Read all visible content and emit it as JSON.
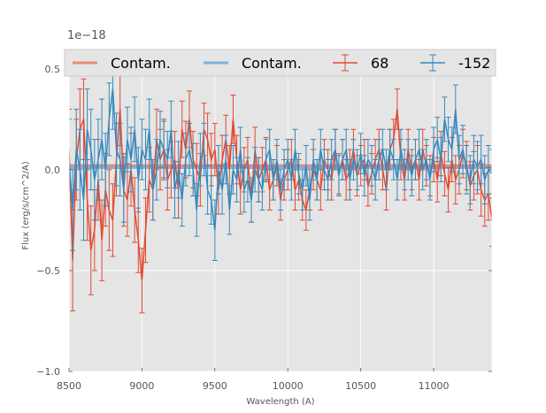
{
  "chart_data": {
    "type": "line",
    "title": "",
    "xlabel": "Wavelength (A)",
    "ylabel": "Flux (erg/s/cm^2/A)",
    "y_offset_label": "1e−18",
    "xlim": [
      8500,
      11400
    ],
    "ylim": [
      -1.0,
      0.6
    ],
    "xticks": [
      8500,
      9000,
      9500,
      10000,
      10500,
      11000
    ],
    "xtick_labels": [
      "8500",
      "9000",
      "9500",
      "10000",
      "10500",
      "11000"
    ],
    "yticks": [
      -1.0,
      -0.5,
      0.0,
      0.5
    ],
    "ytick_labels": [
      "−1.0",
      "−0.5",
      "0.0",
      "0.5"
    ],
    "grid": true,
    "legend_position": "top",
    "colors": {
      "red": "#E24A33",
      "blue": "#348ABD",
      "red_light": "#E88A78",
      "blue_light": "#7FB1D6",
      "background": "#E5E5E5",
      "grid": "#FFFFFF"
    },
    "legend": [
      {
        "label": "Contam.",
        "kind": "line",
        "color": "#E88A78"
      },
      {
        "label": "Contam.",
        "kind": "line",
        "color": "#7FB1D6"
      },
      {
        "label": "68",
        "kind": "errorbar",
        "color": "#E24A33"
      },
      {
        "label": "-152",
        "kind": "errorbar",
        "color": "#348ABD"
      }
    ],
    "series": [
      {
        "name": "Contam.",
        "kind": "line",
        "color": "#E88A78",
        "x": [
          8500,
          11400
        ],
        "values": [
          0.02,
          0.02
        ]
      },
      {
        "name": "Contam.",
        "kind": "line",
        "color": "#7FB1D6",
        "x": [
          8500,
          11400
        ],
        "values": [
          0.01,
          0.01
        ]
      },
      {
        "name": "68",
        "kind": "errorbar",
        "color": "#E24A33",
        "x": [
          8500,
          8525,
          8550,
          8575,
          8600,
          8625,
          8650,
          8675,
          8700,
          8725,
          8750,
          8775,
          8800,
          8825,
          8850,
          8875,
          8900,
          8925,
          8950,
          8975,
          9000,
          9025,
          9050,
          9075,
          9100,
          9125,
          9150,
          9175,
          9200,
          9225,
          9250,
          9275,
          9300,
          9325,
          9350,
          9375,
          9400,
          9425,
          9450,
          9475,
          9500,
          9525,
          9550,
          9575,
          9600,
          9625,
          9650,
          9675,
          9700,
          9725,
          9750,
          9775,
          9800,
          9825,
          9850,
          9875,
          9900,
          9925,
          9950,
          9975,
          10000,
          10025,
          10050,
          10075,
          10100,
          10125,
          10150,
          10175,
          10200,
          10225,
          10250,
          10275,
          10300,
          10325,
          10350,
          10375,
          10400,
          10425,
          10450,
          10475,
          10500,
          10525,
          10550,
          10575,
          10600,
          10625,
          10650,
          10675,
          10700,
          10725,
          10750,
          10775,
          10800,
          10825,
          10850,
          10875,
          10900,
          10925,
          10950,
          10975,
          11000,
          11025,
          11050,
          11075,
          11100,
          11125,
          11150,
          11175,
          11200,
          11225,
          11250,
          11275,
          11300,
          11325,
          11350,
          11375,
          11400
        ],
        "values": [
          0.1,
          -0.45,
          0.05,
          0.2,
          0.25,
          -0.15,
          -0.4,
          -0.3,
          -0.05,
          -0.35,
          -0.1,
          -0.2,
          -0.25,
          0.05,
          0.3,
          -0.1,
          -0.15,
          0.0,
          -0.2,
          -0.35,
          -0.55,
          -0.3,
          -0.05,
          -0.1,
          0.15,
          0.05,
          0.1,
          -0.05,
          0.0,
          0.05,
          -0.1,
          0.2,
          0.1,
          0.25,
          0.05,
          0.0,
          -0.05,
          0.2,
          0.15,
          0.05,
          0.1,
          -0.1,
          0.05,
          0.15,
          0.0,
          0.25,
          0.05,
          -0.1,
          0.0,
          0.05,
          -0.15,
          0.1,
          -0.05,
          0.0,
          0.05,
          -0.1,
          -0.05,
          0.02,
          -0.15,
          -0.05,
          0.0,
          0.05,
          -0.1,
          -0.05,
          -0.15,
          -0.2,
          -0.1,
          0.0,
          -0.05,
          -0.1,
          0.05,
          0.0,
          -0.05,
          0.1,
          -0.02,
          0.05,
          -0.05,
          0.0,
          0.1,
          -0.03,
          0.02,
          0.05,
          -0.08,
          -0.02,
          0.05,
          0.1,
          0.0,
          -0.1,
          0.1,
          0.15,
          0.3,
          0.05,
          -0.05,
          0.1,
          0.0,
          0.05,
          -0.05,
          0.1,
          0.02,
          -0.03,
          0.05,
          -0.05,
          0.08,
          -0.02,
          -0.1,
          0.05,
          -0.05,
          0.0,
          0.08,
          0.02,
          -0.08,
          -0.03,
          0.0,
          -0.1,
          -0.15,
          -0.12,
          -0.25
        ],
        "errors": [
          0.2,
          0.25,
          0.2,
          0.2,
          0.2,
          0.2,
          0.22,
          0.2,
          0.2,
          0.2,
          0.18,
          0.2,
          0.18,
          0.18,
          0.18,
          0.18,
          0.18,
          0.18,
          0.16,
          0.16,
          0.16,
          0.16,
          0.16,
          0.15,
          0.15,
          0.15,
          0.15,
          0.15,
          0.14,
          0.14,
          0.14,
          0.14,
          0.14,
          0.14,
          0.14,
          0.13,
          0.13,
          0.13,
          0.13,
          0.13,
          0.13,
          0.12,
          0.12,
          0.12,
          0.12,
          0.12,
          0.12,
          0.12,
          0.11,
          0.11,
          0.11,
          0.11,
          0.11,
          0.11,
          0.11,
          0.1,
          0.1,
          0.1,
          0.1,
          0.1,
          0.1,
          0.1,
          0.1,
          0.1,
          0.1,
          0.1,
          0.1,
          0.1,
          0.1,
          0.1,
          0.1,
          0.1,
          0.1,
          0.1,
          0.1,
          0.1,
          0.1,
          0.1,
          0.1,
          0.1,
          0.1,
          0.1,
          0.1,
          0.1,
          0.1,
          0.1,
          0.1,
          0.1,
          0.1,
          0.1,
          0.1,
          0.1,
          0.1,
          0.1,
          0.1,
          0.1,
          0.1,
          0.1,
          0.1,
          0.1,
          0.11,
          0.11,
          0.11,
          0.11,
          0.11,
          0.11,
          0.12,
          0.12,
          0.12,
          0.12,
          0.12,
          0.12,
          0.12,
          0.13,
          0.13,
          0.13,
          0.13
        ]
      },
      {
        "name": "-152",
        "kind": "errorbar",
        "color": "#348ABD",
        "x": [
          8500,
          8525,
          8550,
          8575,
          8600,
          8625,
          8650,
          8675,
          8700,
          8725,
          8750,
          8775,
          8800,
          8825,
          8850,
          8875,
          8900,
          8925,
          8950,
          8975,
          9000,
          9025,
          9050,
          9075,
          9100,
          9125,
          9150,
          9175,
          9200,
          9225,
          9250,
          9275,
          9300,
          9325,
          9350,
          9375,
          9400,
          9425,
          9450,
          9475,
          9500,
          9525,
          9550,
          9575,
          9600,
          9625,
          9650,
          9675,
          9700,
          9725,
          9750,
          9775,
          9800,
          9825,
          9850,
          9875,
          9900,
          9925,
          9950,
          9975,
          10000,
          10025,
          10050,
          10075,
          10100,
          10125,
          10150,
          10175,
          10200,
          10225,
          10250,
          10275,
          10300,
          10325,
          10350,
          10375,
          10400,
          10425,
          10450,
          10475,
          10500,
          10525,
          10550,
          10575,
          10600,
          10625,
          10650,
          10675,
          10700,
          10725,
          10750,
          10775,
          10800,
          10825,
          10850,
          10875,
          10900,
          10925,
          10950,
          10975,
          11000,
          11025,
          11050,
          11075,
          11100,
          11125,
          11150,
          11175,
          11200,
          11225,
          11250,
          11275,
          11300,
          11325,
          11350,
          11375,
          11400
        ],
        "values": [
          0.05,
          -0.2,
          0.1,
          0.0,
          -0.15,
          0.2,
          0.1,
          -0.05,
          0.05,
          0.15,
          0.0,
          0.25,
          0.4,
          0.1,
          0.05,
          -0.1,
          0.15,
          0.05,
          0.2,
          -0.05,
          0.1,
          0.05,
          0.2,
          -0.1,
          0.0,
          0.15,
          0.1,
          0.05,
          0.2,
          -0.1,
          0.0,
          -0.15,
          0.05,
          0.1,
          0.0,
          -0.2,
          0.05,
          0.1,
          -0.1,
          -0.15,
          -0.3,
          0.0,
          -0.1,
          0.05,
          -0.2,
          0.0,
          -0.05,
          0.1,
          -0.1,
          -0.05,
          -0.15,
          0.0,
          -0.05,
          -0.1,
          0.05,
          0.1,
          -0.05,
          0.05,
          -0.1,
          0.0,
          0.05,
          -0.05,
          0.1,
          -0.02,
          -0.1,
          0.02,
          -0.15,
          0.05,
          -0.05,
          0.1,
          0.0,
          -0.05,
          0.05,
          0.1,
          -0.03,
          0.05,
          0.1,
          -0.05,
          0.05,
          0.0,
          0.08,
          -0.03,
          0.05,
          0.02,
          -0.05,
          0.05,
          0.1,
          0.0,
          0.1,
          0.05,
          -0.05,
          0.1,
          0.0,
          0.05,
          -0.03,
          0.05,
          0.1,
          0.0,
          0.05,
          -0.05,
          0.1,
          0.15,
          0.05,
          0.25,
          0.15,
          0.1,
          0.3,
          0.05,
          0.1,
          0.0,
          -0.05,
          0.05,
          0.02,
          0.05,
          -0.05,
          0.0,
          -0.02
        ],
        "errors": [
          0.2,
          0.2,
          0.2,
          0.2,
          0.2,
          0.2,
          0.2,
          0.2,
          0.2,
          0.2,
          0.18,
          0.18,
          0.2,
          0.18,
          0.18,
          0.16,
          0.16,
          0.16,
          0.16,
          0.16,
          0.15,
          0.15,
          0.15,
          0.15,
          0.15,
          0.14,
          0.14,
          0.14,
          0.14,
          0.14,
          0.14,
          0.13,
          0.13,
          0.13,
          0.13,
          0.13,
          0.13,
          0.13,
          0.12,
          0.12,
          0.15,
          0.12,
          0.12,
          0.12,
          0.12,
          0.12,
          0.11,
          0.11,
          0.11,
          0.11,
          0.11,
          0.11,
          0.11,
          0.1,
          0.1,
          0.1,
          0.1,
          0.1,
          0.1,
          0.1,
          0.1,
          0.1,
          0.1,
          0.1,
          0.1,
          0.1,
          0.1,
          0.1,
          0.1,
          0.1,
          0.1,
          0.1,
          0.1,
          0.1,
          0.1,
          0.1,
          0.1,
          0.1,
          0.1,
          0.1,
          0.1,
          0.1,
          0.1,
          0.1,
          0.1,
          0.1,
          0.1,
          0.1,
          0.1,
          0.1,
          0.1,
          0.1,
          0.1,
          0.1,
          0.1,
          0.1,
          0.1,
          0.1,
          0.1,
          0.1,
          0.11,
          0.11,
          0.11,
          0.11,
          0.11,
          0.11,
          0.12,
          0.12,
          0.12,
          0.12,
          0.12,
          0.12,
          0.12,
          0.12,
          0.12,
          0.12,
          0.12
        ]
      }
    ]
  }
}
